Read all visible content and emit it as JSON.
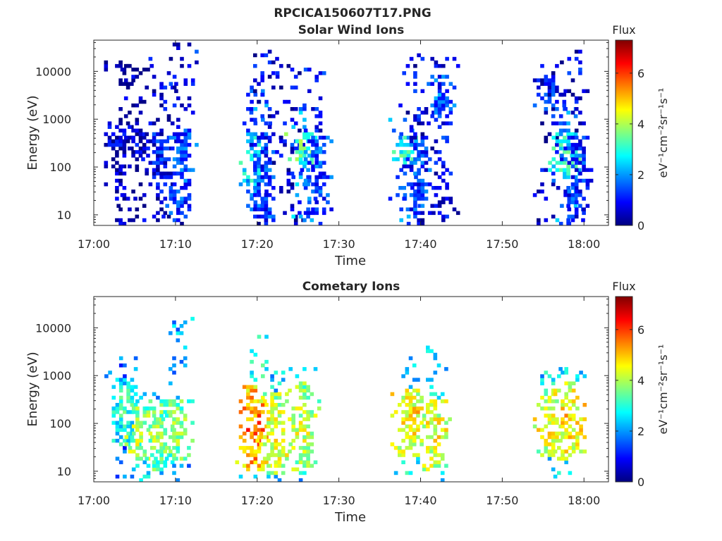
{
  "figure": {
    "title": "RPCICA150607T17.PNG"
  },
  "chart_data": [
    {
      "type": "heatmap",
      "title": "Solar Wind Ions",
      "xlabel": "Time",
      "ylabel": "Energy (eV)",
      "x_ticks": [
        "17:00",
        "17:10",
        "17:20",
        "17:30",
        "17:40",
        "17:50",
        "18:00"
      ],
      "y_ticks": [
        "10",
        "100",
        "1000",
        "10000"
      ],
      "y_scale": "log",
      "xlim": [
        "17:00",
        "18:03"
      ],
      "ylim": [
        6,
        45000
      ],
      "colorbar": {
        "title": "Flux",
        "label": "eV⁻¹cm⁻²sr⁻¹s⁻¹",
        "ticks": [
          "0",
          "2",
          "4",
          "6"
        ],
        "range": [
          0,
          7.3
        ],
        "colormap": "jet"
      },
      "bursts": [
        {
          "t": 3.0,
          "level": 0.5,
          "lowE": [
            200,
            800
          ],
          "highE": 20000
        },
        {
          "t": 5.0,
          "level": 0.5,
          "lowE": [
            150,
            600
          ],
          "highE": 15000
        },
        {
          "t": 8.0,
          "level": 1.0,
          "lowE": [
            50,
            500
          ],
          "highE": 20000
        },
        {
          "t": 10.5,
          "level": 1.5,
          "lowE": [
            10,
            600
          ],
          "highE": 35000
        },
        {
          "t": 19.5,
          "level": 2.8,
          "lowE": [
            40,
            500
          ],
          "highE": 5000
        },
        {
          "t": 20.8,
          "level": 1.3,
          "lowE": [
            8,
            500
          ],
          "highE": 30000
        },
        {
          "t": 24.0,
          "level": 1.0,
          "lowE": [
            200,
            500
          ],
          "highE": 15000
        },
        {
          "t": 25.5,
          "level": 3.5,
          "lowE": [
            100,
            500
          ],
          "highE": 2000
        },
        {
          "t": 27.0,
          "level": 1.5,
          "lowE": [
            8,
            400
          ],
          "highE": 12000
        },
        {
          "t": 37.8,
          "level": 3.0,
          "lowE": [
            100,
            400
          ],
          "highE": 1000
        },
        {
          "t": 39.5,
          "level": 1.3,
          "lowE": [
            8,
            400
          ],
          "highE": 25000
        },
        {
          "t": 42.5,
          "level": 1.5,
          "lowE": [
            1000,
            8000
          ],
          "highE": 20000
        },
        {
          "t": 55.5,
          "level": 1.0,
          "lowE": [
            1000,
            8000
          ],
          "highE": 20000
        },
        {
          "t": 57.8,
          "level": 3.0,
          "lowE": [
            50,
            500
          ],
          "highE": 2000
        },
        {
          "t": 58.8,
          "level": 1.3,
          "lowE": [
            8,
            500
          ],
          "highE": 25000
        }
      ]
    },
    {
      "type": "heatmap",
      "title": "Cometary Ions",
      "xlabel": "Time",
      "ylabel": "Energy (eV)",
      "x_ticks": [
        "17:00",
        "17:10",
        "17:20",
        "17:30",
        "17:40",
        "17:50",
        "18:00"
      ],
      "y_ticks": [
        "10",
        "100",
        "1000",
        "10000"
      ],
      "y_scale": "log",
      "xlim": [
        "17:00",
        "18:03"
      ],
      "ylim": [
        6,
        45000
      ],
      "colorbar": {
        "title": "Flux",
        "label": "eV⁻¹cm⁻²sr⁻¹s⁻¹",
        "ticks": [
          "0",
          "2",
          "4",
          "6"
        ],
        "range": [
          0,
          7.3
        ],
        "colormap": "jet"
      },
      "bursts": [
        {
          "t": 3.5,
          "level": 3.0,
          "lowE": [
            30,
            800
          ],
          "highE": 2500
        },
        {
          "t": 5.5,
          "level": 4.2,
          "lowE": [
            15,
            200
          ],
          "highE": 400
        },
        {
          "t": 8.0,
          "level": 3.8,
          "lowE": [
            10,
            300
          ],
          "highE": 600
        },
        {
          "t": 10.0,
          "level": 3.8,
          "lowE": [
            15,
            300
          ],
          "highE": 15000
        },
        {
          "t": 19.5,
          "level": 5.6,
          "lowE": [
            8,
            600
          ],
          "highE": 8000
        },
        {
          "t": 22.0,
          "level": 4.5,
          "lowE": [
            8,
            400
          ],
          "highE": 1500
        },
        {
          "t": 25.5,
          "level": 4.2,
          "lowE": [
            10,
            700
          ],
          "highE": 1500
        },
        {
          "t": 38.5,
          "level": 4.8,
          "lowE": [
            20,
            500
          ],
          "highE": 3000
        },
        {
          "t": 41.5,
          "level": 4.5,
          "lowE": [
            10,
            300
          ],
          "highE": 5000
        },
        {
          "t": 55.5,
          "level": 4.5,
          "lowE": [
            20,
            500
          ],
          "highE": 1500
        },
        {
          "t": 58.0,
          "level": 4.8,
          "lowE": [
            15,
            700
          ],
          "highE": 1500
        }
      ]
    }
  ]
}
